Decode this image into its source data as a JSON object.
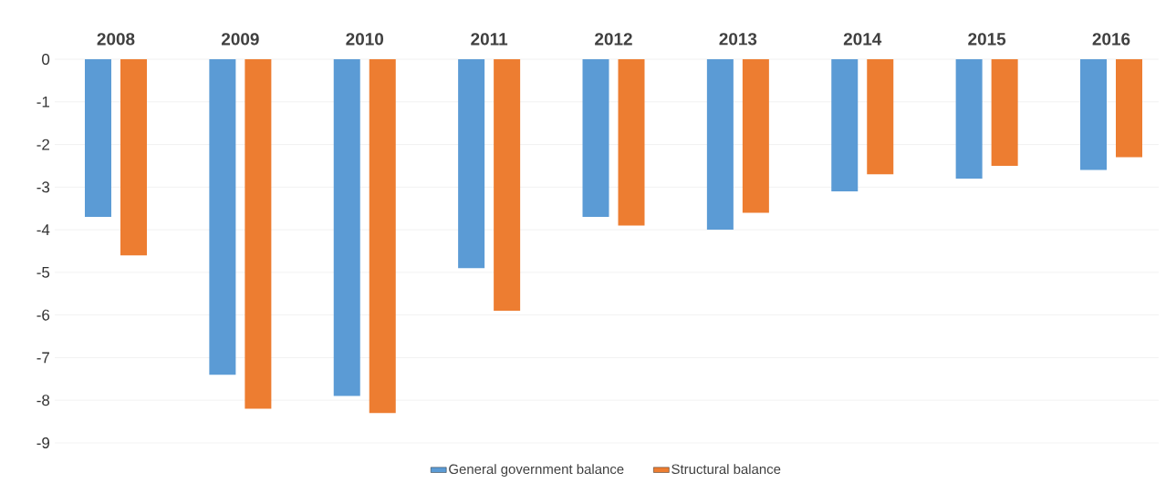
{
  "chart_data": {
    "type": "bar",
    "categories": [
      "2008",
      "2009",
      "2010",
      "2011",
      "2012",
      "2013",
      "2014",
      "2015",
      "2016"
    ],
    "series": [
      {
        "name": "General government balance",
        "color": "#5b9bd5",
        "values": [
          -3.7,
          -7.4,
          -7.9,
          -4.9,
          -3.7,
          -4.0,
          -3.1,
          -2.8,
          -2.6
        ]
      },
      {
        "name": "Structural balance",
        "color": "#ed7d31",
        "values": [
          -4.6,
          -8.2,
          -8.3,
          -5.9,
          -3.9,
          -3.6,
          -2.7,
          -2.5,
          -2.3
        ]
      }
    ],
    "ylim": [
      -9,
      0
    ],
    "yticks": [
      -9,
      -8,
      -7,
      -6,
      -5,
      -4,
      -3,
      -2,
      -1,
      0
    ],
    "grid": "y",
    "legend": "bottom"
  }
}
